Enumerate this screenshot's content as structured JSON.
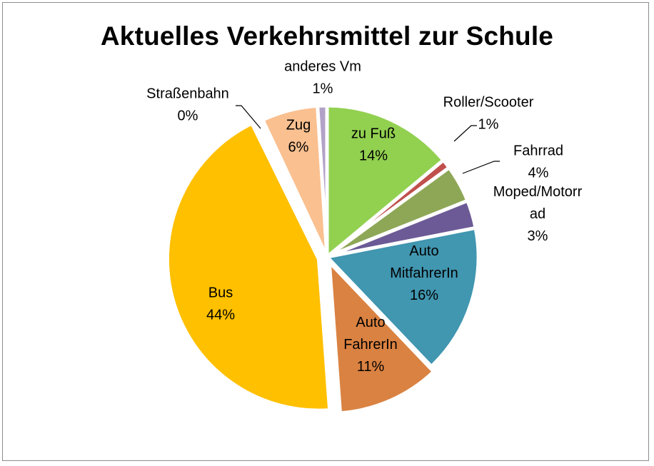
{
  "chart_data": {
    "type": "pie",
    "title": "Aktuelles Verkehrsmittel zur Schule",
    "slices": [
      {
        "name": "zu Fuß",
        "name_lines": [
          "zu Fuß"
        ],
        "value": 14,
        "label": "14%",
        "color": "#92d050"
      },
      {
        "name": "Roller/Scooter",
        "name_lines": [
          "Roller/Scooter"
        ],
        "value": 1,
        "label": "1%",
        "color": "#c0504d"
      },
      {
        "name": "Fahrrad",
        "name_lines": [
          "Fahrrad"
        ],
        "value": 4,
        "label": "4%",
        "color": "#8ea756"
      },
      {
        "name": "Moped/Motorrad",
        "name_lines": [
          "Moped/Motorr",
          "ad"
        ],
        "value": 3,
        "label": "3%",
        "color": "#6c5a96"
      },
      {
        "name": "Auto MitfahrerIn",
        "name_lines": [
          "Auto",
          "MitfahrerIn"
        ],
        "value": 16,
        "label": "16%",
        "color": "#4196b0"
      },
      {
        "name": "Auto FahrerIn",
        "name_lines": [
          "Auto",
          "FahrerIn"
        ],
        "value": 11,
        "label": "11%",
        "color": "#da8242"
      },
      {
        "name": "Bus",
        "name_lines": [
          "Bus"
        ],
        "value": 44,
        "label": "44%",
        "color": "#ffc000"
      },
      {
        "name": "Straßenbahn",
        "name_lines": [
          "Straßenbahn"
        ],
        "value": 0,
        "label": "0%",
        "color": "#d9d9d9"
      },
      {
        "name": "Zug",
        "name_lines": [
          "Zug"
        ],
        "value": 6,
        "label": "6%",
        "color": "#fac090"
      },
      {
        "name": "anderes Vm",
        "name_lines": [
          "anderes Vm"
        ],
        "value": 1,
        "label": "1%",
        "color": "#b3a2c7"
      }
    ]
  }
}
